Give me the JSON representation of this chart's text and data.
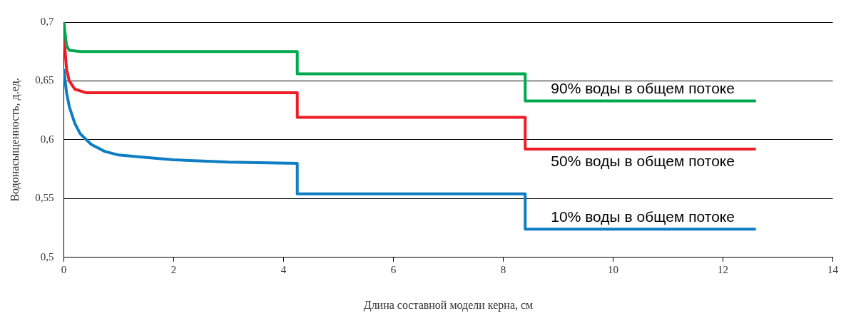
{
  "chart_data": {
    "type": "line",
    "xlabel": "Длина составной модели керна, см",
    "ylabel": "Водонасыщенность, д.ед.",
    "xlim": [
      0,
      14
    ],
    "xticks": [
      0,
      2,
      4,
      6,
      8,
      10,
      12,
      14
    ],
    "ylim": [
      0.5,
      0.7
    ],
    "yticks": [
      {
        "value": 0.5,
        "label": "0,5"
      },
      {
        "value": 0.55,
        "label": "0,55"
      },
      {
        "value": 0.6,
        "label": "0,6"
      },
      {
        "value": 0.65,
        "label": "0,65"
      },
      {
        "value": 0.7,
        "label": "0,7"
      }
    ],
    "grid": "y",
    "legend": false,
    "series": [
      {
        "name": "90% воды в общем потоке",
        "color": "#00a84f",
        "x": [
          0,
          0.05,
          0.1,
          0.3,
          4.25,
          4.25,
          8.4,
          8.4,
          12.6
        ],
        "values": [
          0.7,
          0.68,
          0.676,
          0.675,
          0.675,
          0.656,
          0.656,
          0.633,
          0.633
        ]
      },
      {
        "name": "50% воды в общем потоке",
        "color": "#ee1c25",
        "x": [
          0,
          0.05,
          0.1,
          0.2,
          0.4,
          4.25,
          4.25,
          8.4,
          8.4,
          12.6
        ],
        "values": [
          0.69,
          0.66,
          0.65,
          0.643,
          0.64,
          0.64,
          0.619,
          0.619,
          0.592,
          0.592
        ]
      },
      {
        "name": "10% воды в общем потоке",
        "color": "#0f7dc2",
        "x": [
          0,
          0.05,
          0.1,
          0.2,
          0.3,
          0.5,
          0.75,
          1,
          1.5,
          2,
          3,
          4.25,
          4.25,
          8.4,
          8.4,
          12.6
        ],
        "values": [
          0.66,
          0.64,
          0.628,
          0.614,
          0.605,
          0.596,
          0.59,
          0.587,
          0.585,
          0.583,
          0.581,
          0.58,
          0.554,
          0.554,
          0.524,
          0.524
        ]
      }
    ]
  }
}
